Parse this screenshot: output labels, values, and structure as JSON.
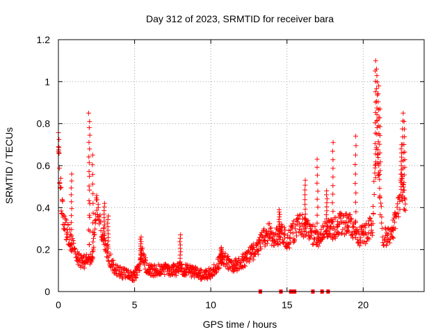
{
  "chart_data": {
    "type": "scatter",
    "title": "Day 312 of 2023, SRMTID for receiver bara",
    "xlabel": "GPS time / hours",
    "ylabel": "SRMTID / TECUs",
    "xlim": [
      0,
      24
    ],
    "ylim": [
      0,
      1.2
    ],
    "xticks": [
      0,
      5,
      10,
      15,
      20
    ],
    "xtick_labels": [
      "0",
      "5",
      "10",
      "15",
      "20"
    ],
    "yticks": [
      0,
      0.2,
      0.4,
      0.6,
      0.8,
      1.0,
      1.2
    ],
    "ytick_labels": [
      "0",
      "0.2",
      "0.4",
      "0.6",
      "0.8",
      "1",
      "1.2"
    ],
    "grid": true,
    "marker": "+",
    "series": [
      {
        "name": "SRMTID",
        "color": "#ff0000",
        "trend": [
          [
            0.0,
            0.68
          ],
          [
            0.1,
            0.55
          ],
          [
            0.2,
            0.42
          ],
          [
            0.3,
            0.36
          ],
          [
            0.4,
            0.32
          ],
          [
            0.6,
            0.28
          ],
          [
            0.8,
            0.24
          ],
          [
            1.0,
            0.2
          ],
          [
            1.3,
            0.16
          ],
          [
            1.6,
            0.14
          ],
          [
            1.9,
            0.15
          ],
          [
            2.1,
            0.16
          ],
          [
            2.3,
            0.2
          ],
          [
            2.5,
            0.45
          ],
          [
            2.7,
            0.35
          ],
          [
            2.9,
            0.28
          ],
          [
            3.1,
            0.22
          ],
          [
            3.3,
            0.18
          ],
          [
            3.5,
            0.13
          ],
          [
            3.8,
            0.1
          ],
          [
            4.2,
            0.09
          ],
          [
            4.6,
            0.08
          ],
          [
            5.0,
            0.07
          ],
          [
            5.3,
            0.12
          ],
          [
            5.5,
            0.18
          ],
          [
            5.8,
            0.11
          ],
          [
            6.2,
            0.1
          ],
          [
            6.8,
            0.11
          ],
          [
            7.4,
            0.1
          ],
          [
            8.0,
            0.11
          ],
          [
            8.5,
            0.1
          ],
          [
            9.0,
            0.09
          ],
          [
            9.5,
            0.08
          ],
          [
            10.0,
            0.09
          ],
          [
            10.4,
            0.12
          ],
          [
            10.7,
            0.16
          ],
          [
            11.0,
            0.15
          ],
          [
            11.4,
            0.12
          ],
          [
            11.8,
            0.13
          ],
          [
            12.2,
            0.15
          ],
          [
            12.6,
            0.18
          ],
          [
            13.0,
            0.2
          ],
          [
            13.4,
            0.25
          ],
          [
            13.8,
            0.28
          ],
          [
            14.2,
            0.26
          ],
          [
            14.6,
            0.28
          ],
          [
            15.0,
            0.24
          ],
          [
            15.4,
            0.28
          ],
          [
            15.8,
            0.33
          ],
          [
            16.2,
            0.3
          ],
          [
            16.6,
            0.28
          ],
          [
            17.0,
            0.25
          ],
          [
            17.4,
            0.28
          ],
          [
            17.8,
            0.3
          ],
          [
            18.2,
            0.3
          ],
          [
            18.6,
            0.33
          ],
          [
            19.0,
            0.32
          ],
          [
            19.4,
            0.3
          ],
          [
            19.8,
            0.26
          ],
          [
            20.2,
            0.28
          ],
          [
            20.6,
            0.32
          ],
          [
            20.9,
            0.75
          ],
          [
            21.1,
            0.45
          ],
          [
            21.3,
            0.25
          ],
          [
            21.6,
            0.27
          ],
          [
            21.9,
            0.29
          ],
          [
            22.2,
            0.35
          ],
          [
            22.5,
            0.5
          ],
          [
            22.8,
            0.42
          ]
        ],
        "spikes": [
          {
            "x": 0.02,
            "y": 0.69
          },
          {
            "x": 0.85,
            "y": 0.56
          },
          {
            "x": 2.0,
            "y": 0.85
          },
          {
            "x": 2.05,
            "y": 0.81
          },
          {
            "x": 2.25,
            "y": 0.65
          },
          {
            "x": 3.0,
            "y": 0.42
          },
          {
            "x": 3.25,
            "y": 0.36
          },
          {
            "x": 5.4,
            "y": 0.26
          },
          {
            "x": 8.0,
            "y": 0.27
          },
          {
            "x": 10.7,
            "y": 0.21
          },
          {
            "x": 14.5,
            "y": 0.39
          },
          {
            "x": 16.2,
            "y": 0.53
          },
          {
            "x": 17.0,
            "y": 0.63
          },
          {
            "x": 17.6,
            "y": 0.48
          },
          {
            "x": 18.0,
            "y": 0.71
          },
          {
            "x": 19.5,
            "y": 0.74
          },
          {
            "x": 20.8,
            "y": 1.1
          },
          {
            "x": 20.9,
            "y": 1.06
          },
          {
            "x": 21.0,
            "y": 0.98
          },
          {
            "x": 21.1,
            "y": 0.87
          },
          {
            "x": 22.6,
            "y": 0.85
          },
          {
            "x": 22.7,
            "y": 0.81
          },
          {
            "x": 22.5,
            "y": 0.7
          }
        ],
        "zero_markers": [
          13.25,
          14.6,
          15.25,
          15.4,
          15.5,
          16.7,
          17.3,
          17.7
        ]
      }
    ]
  }
}
